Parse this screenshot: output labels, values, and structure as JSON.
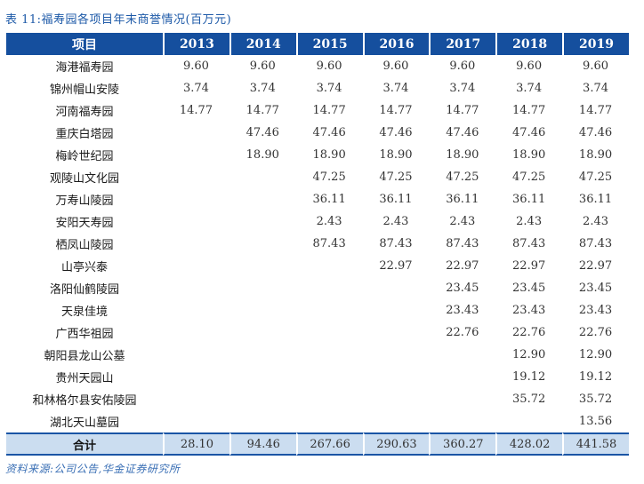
{
  "title": "表 11:福寿园各项目年末商誉情况(百万元)",
  "source_note": "资料来源:公司公告,华金证券研究所",
  "colors": {
    "header_bg": "#154F9E",
    "total_row_bg": "#CBDDF0",
    "rule_color": "#1A55A5",
    "title_color": "#1E5AA8",
    "source_color": "#3A6FB5"
  },
  "chart_data": {
    "type": "table",
    "columns": [
      "项目",
      "2013",
      "2014",
      "2015",
      "2016",
      "2017",
      "2018",
      "2019"
    ],
    "rows": [
      {
        "name": "海港福寿园",
        "values": [
          "9.60",
          "9.60",
          "9.60",
          "9.60",
          "9.60",
          "9.60",
          "9.60"
        ]
      },
      {
        "name": "锦州帽山安陵",
        "values": [
          "3.74",
          "3.74",
          "3.74",
          "3.74",
          "3.74",
          "3.74",
          "3.74"
        ]
      },
      {
        "name": "河南福寿园",
        "values": [
          "14.77",
          "14.77",
          "14.77",
          "14.77",
          "14.77",
          "14.77",
          "14.77"
        ]
      },
      {
        "name": "重庆白塔园",
        "values": [
          "",
          "47.46",
          "47.46",
          "47.46",
          "47.46",
          "47.46",
          "47.46"
        ]
      },
      {
        "name": "梅岭世纪园",
        "values": [
          "",
          "18.90",
          "18.90",
          "18.90",
          "18.90",
          "18.90",
          "18.90"
        ]
      },
      {
        "name": "观陵山文化园",
        "values": [
          "",
          "",
          "47.25",
          "47.25",
          "47.25",
          "47.25",
          "47.25"
        ]
      },
      {
        "name": "万寿山陵园",
        "values": [
          "",
          "",
          "36.11",
          "36.11",
          "36.11",
          "36.11",
          "36.11"
        ]
      },
      {
        "name": "安阳天寿园",
        "values": [
          "",
          "",
          "2.43",
          "2.43",
          "2.43",
          "2.43",
          "2.43"
        ]
      },
      {
        "name": "栖凤山陵园",
        "values": [
          "",
          "",
          "87.43",
          "87.43",
          "87.43",
          "87.43",
          "87.43"
        ]
      },
      {
        "name": "山亭兴泰",
        "values": [
          "",
          "",
          "",
          "22.97",
          "22.97",
          "22.97",
          "22.97"
        ]
      },
      {
        "name": "洛阳仙鹤陵园",
        "values": [
          "",
          "",
          "",
          "",
          "23.45",
          "23.45",
          "23.45"
        ]
      },
      {
        "name": "天泉佳境",
        "values": [
          "",
          "",
          "",
          "",
          "23.43",
          "23.43",
          "23.43"
        ]
      },
      {
        "name": "广西华祖园",
        "values": [
          "",
          "",
          "",
          "",
          "22.76",
          "22.76",
          "22.76"
        ]
      },
      {
        "name": "朝阳县龙山公墓",
        "values": [
          "",
          "",
          "",
          "",
          "",
          "12.90",
          "12.90"
        ]
      },
      {
        "name": "贵州天园山",
        "values": [
          "",
          "",
          "",
          "",
          "",
          "19.12",
          "19.12"
        ]
      },
      {
        "name": "和林格尔县安佑陵园",
        "values": [
          "",
          "",
          "",
          "",
          "",
          "35.72",
          "35.72"
        ]
      },
      {
        "name": "湖北天山墓园",
        "values": [
          "",
          "",
          "",
          "",
          "",
          "",
          "13.56"
        ]
      }
    ],
    "total": {
      "label": "合计",
      "values": [
        "28.10",
        "94.46",
        "267.66",
        "290.63",
        "360.27",
        "428.02",
        "441.58"
      ]
    }
  }
}
